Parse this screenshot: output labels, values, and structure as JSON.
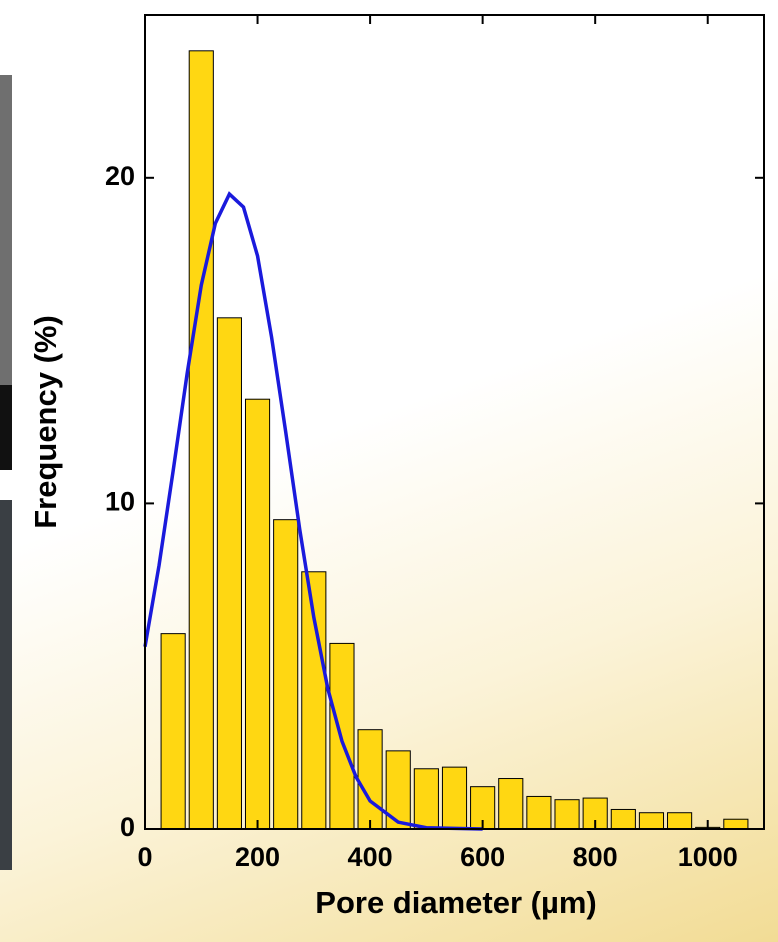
{
  "chart_data": {
    "type": "histogram",
    "xlabel": "Pore diameter (µm)",
    "ylabel": "Frequency (%)",
    "bins": [
      25,
      75,
      125,
      175,
      225,
      275,
      325,
      375,
      425,
      475,
      525,
      575,
      625,
      675,
      725,
      775,
      825,
      875,
      925,
      975,
      1025,
      1075
    ],
    "counts": [
      6.0,
      23.9,
      15.7,
      13.2,
      9.5,
      7.9,
      5.7,
      3.05,
      2.4,
      1.85,
      1.9,
      1.3,
      1.55,
      1.0,
      0.9,
      0.95,
      0.6,
      0.5,
      0.5,
      0.05,
      0.3
    ],
    "color": "#ffd712",
    "fit": {
      "color": "#1a1adc",
      "x": [
        0,
        25,
        50,
        75,
        100,
        125,
        150,
        175,
        200,
        225,
        250,
        275,
        300,
        325,
        350,
        375,
        400,
        450,
        500,
        600
      ],
      "y": [
        5.6,
        8.1,
        11.0,
        14.0,
        16.7,
        18.6,
        19.5,
        19.1,
        17.6,
        15.1,
        12.2,
        9.2,
        6.5,
        4.3,
        2.7,
        1.6,
        0.86,
        0.21,
        0.04,
        0.0
      ]
    },
    "xlim": [
      0,
      1100
    ],
    "ylim": [
      0,
      25
    ],
    "xticks": [
      0,
      200,
      400,
      600,
      800,
      1000
    ],
    "yticks": [
      0,
      10,
      20
    ]
  }
}
